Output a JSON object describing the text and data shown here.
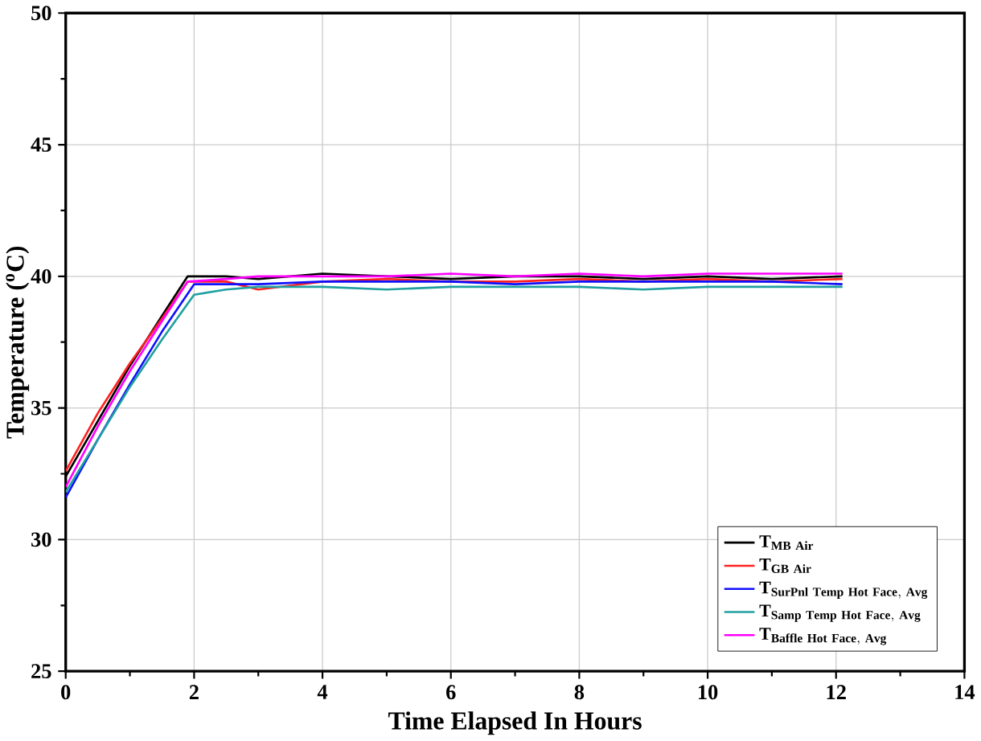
{
  "chart_data": {
    "type": "line",
    "xlabel": "Time Elapsed In Hours",
    "ylabel": "Temperature ($^{o}$C)",
    "xlim": [
      0,
      14
    ],
    "ylim": [
      25,
      50
    ],
    "xticks": [
      0,
      2,
      4,
      6,
      8,
      10,
      12,
      14
    ],
    "yticks": [
      25,
      30,
      35,
      40,
      45,
      50
    ],
    "grid": true,
    "legend": "bottom right",
    "line_style": "solid",
    "marker": "none",
    "series": [
      {
        "name": "\\mathbf{T}_{\\mathbf{MB\\ Air}}",
        "color": "#000000",
        "x": [
          0,
          0.5,
          1,
          1.5,
          1.9,
          2.5,
          3,
          4,
          5,
          6,
          7,
          8,
          9,
          10,
          11,
          12.1
        ],
        "values": [
          32.4,
          34.5,
          36.6,
          38.5,
          40.0,
          40.0,
          39.9,
          40.1,
          40.0,
          39.9,
          40.0,
          40.0,
          39.9,
          40.0,
          39.9,
          40.0
        ]
      },
      {
        "name": "\\mathbf{T}_{\\mathbf{GB\\ Air}}",
        "color": "#ff2020",
        "x": [
          0,
          0.5,
          1,
          1.5,
          1.9,
          2.5,
          3,
          4,
          5,
          6,
          7,
          8,
          9,
          10,
          11,
          12.1
        ],
        "values": [
          32.6,
          34.8,
          36.7,
          38.4,
          39.8,
          39.8,
          39.5,
          39.8,
          39.9,
          39.8,
          39.8,
          39.9,
          39.8,
          39.9,
          39.8,
          39.9
        ]
      },
      {
        "name": "\\mathbf{T}_{\\mathbf{SurPnl\\ Temp\\ Hot\\ Face,\\ Avg}}",
        "color": "#1010ff",
        "x": [
          0,
          0.5,
          1,
          1.5,
          2.0,
          2.5,
          3,
          4,
          5,
          6,
          7,
          8,
          9,
          10,
          11,
          12.1
        ],
        "values": [
          31.6,
          33.8,
          35.9,
          37.9,
          39.7,
          39.7,
          39.7,
          39.8,
          39.8,
          39.8,
          39.7,
          39.8,
          39.8,
          39.8,
          39.8,
          39.7
        ]
      },
      {
        "name": "\\mathbf{T}_{\\mathbf{Samp\\ Temp\\ Hot\\ Face,\\ Avg}}",
        "color": "#20a0a0",
        "x": [
          0,
          0.5,
          1,
          1.5,
          2.0,
          2.5,
          3,
          4,
          5,
          6,
          7,
          8,
          9,
          10,
          11,
          12.1
        ],
        "values": [
          31.8,
          33.8,
          35.8,
          37.6,
          39.3,
          39.5,
          39.6,
          39.6,
          39.5,
          39.6,
          39.6,
          39.6,
          39.5,
          39.6,
          39.6,
          39.6
        ]
      },
      {
        "name": "\\mathbf{T}_{\\mathbf{Baffle\\ Hot\\ Face,\\ Avg}}",
        "color": "#ff00ff",
        "x": [
          0,
          0.5,
          1,
          1.5,
          1.9,
          2.5,
          3,
          4,
          5,
          6,
          7,
          8,
          9,
          10,
          11,
          12.1
        ],
        "values": [
          32.0,
          34.3,
          36.4,
          38.3,
          39.8,
          39.9,
          40.0,
          40.0,
          40.0,
          40.1,
          40.0,
          40.1,
          40.0,
          40.1,
          40.1,
          40.1
        ]
      }
    ]
  }
}
